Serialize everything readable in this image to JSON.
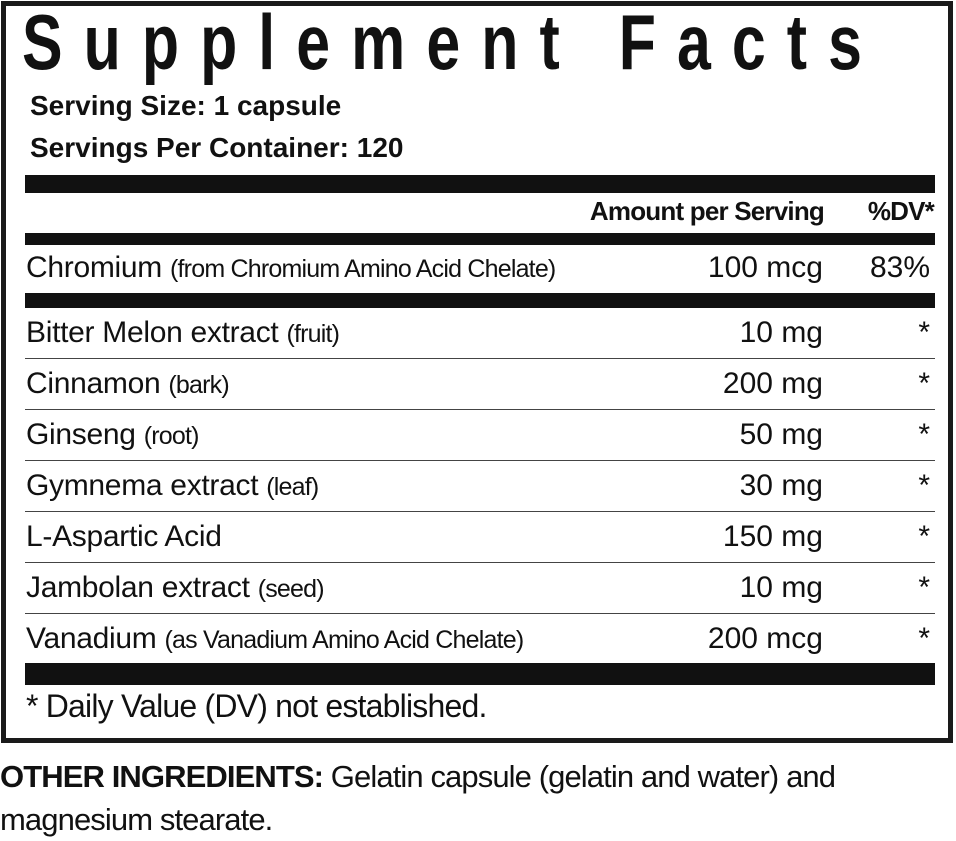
{
  "title": "Supplement Facts",
  "serving_size": "Serving Size: 1 capsule",
  "servings_per_container": "Servings Per Container: 120",
  "header": {
    "amount": "Amount per Serving",
    "dv": "%DV*"
  },
  "featured": {
    "name": "Chromium",
    "detail": "(from Chromium Amino Acid Chelate)",
    "amount": "100 mcg",
    "dv": "83%"
  },
  "ingredients": [
    {
      "name": "Bitter Melon extract",
      "detail": "(fruit)",
      "amount": "10 mg",
      "dv": "*"
    },
    {
      "name": "Cinnamon",
      "detail": "(bark)",
      "amount": "200 mg",
      "dv": "*"
    },
    {
      "name": "Ginseng",
      "detail": "(root)",
      "amount": "50 mg",
      "dv": "*"
    },
    {
      "name": "Gymnema extract",
      "detail": "(leaf)",
      "amount": "30 mg",
      "dv": "*"
    },
    {
      "name": "L-Aspartic Acid",
      "detail": "",
      "amount": "150 mg",
      "dv": "*"
    },
    {
      "name": "Jambolan extract",
      "detail": "(seed)",
      "amount": "10 mg",
      "dv": "*"
    },
    {
      "name": "Vanadium",
      "detail": "(as Vanadium Amino Acid Chelate)",
      "amount": "200 mcg",
      "dv": "*"
    }
  ],
  "footnote": "* Daily Value (DV) not established.",
  "other_ingredients": {
    "label": "OTHER INGREDIENTS:",
    "text": " Gelatin capsule (gelatin and water) and magnesium stearate."
  }
}
